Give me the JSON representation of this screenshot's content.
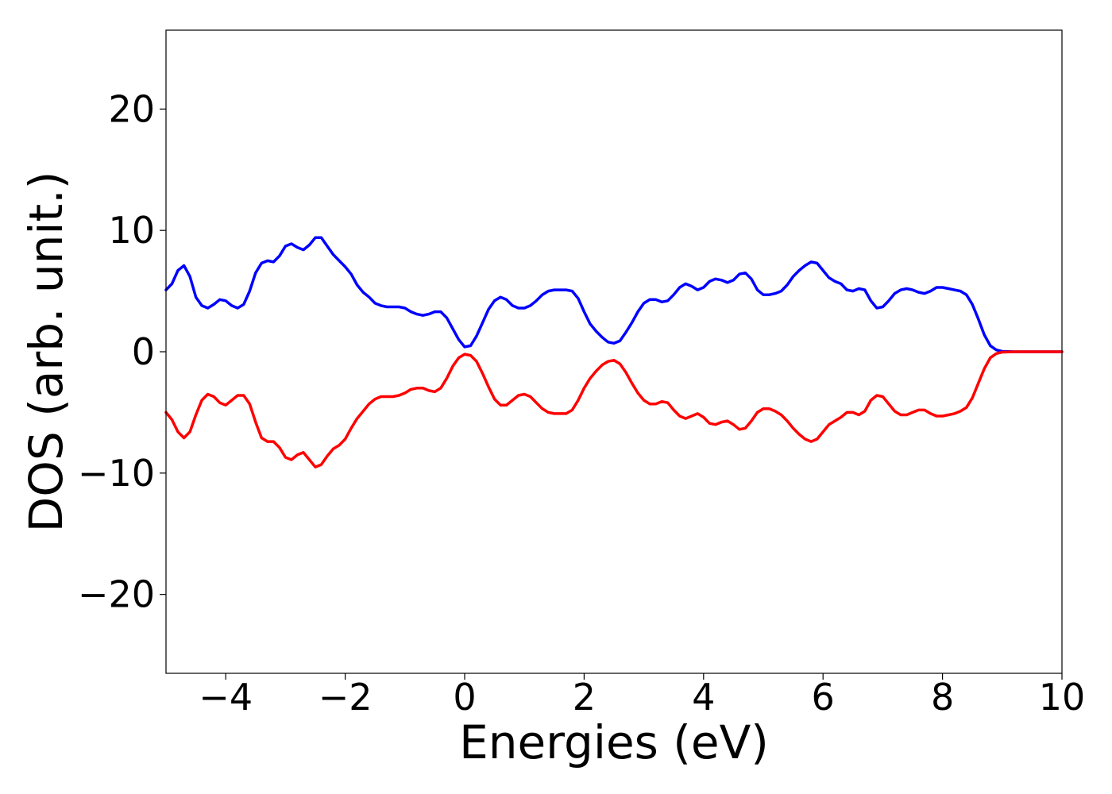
{
  "chart_data": {
    "type": "line",
    "xlabel": "Energies (eV)",
    "ylabel": "DOS (arb. unit.)",
    "xlim": [
      -5,
      10
    ],
    "ylim": [
      -26.5,
      26.5
    ],
    "xticks": [
      -4,
      -2,
      0,
      2,
      4,
      6,
      8,
      10
    ],
    "xtick_labels": [
      "−4",
      "−2",
      "0",
      "2",
      "4",
      "6",
      "8",
      "10"
    ],
    "yticks": [
      -20,
      -10,
      0,
      10,
      20
    ],
    "ytick_labels": [
      "−20",
      "−10",
      "0",
      "10",
      "20"
    ],
    "grid": false,
    "series": [
      {
        "color": "#0000ff",
        "points": [
          [
            -5.0,
            5.1
          ],
          [
            -4.9,
            5.6
          ],
          [
            -4.8,
            6.7
          ],
          [
            -4.7,
            7.1
          ],
          [
            -4.6,
            6.2
          ],
          [
            -4.5,
            4.5
          ],
          [
            -4.4,
            3.8
          ],
          [
            -4.3,
            3.6
          ],
          [
            -4.2,
            3.9
          ],
          [
            -4.1,
            4.3
          ],
          [
            -4.0,
            4.2
          ],
          [
            -3.9,
            3.8
          ],
          [
            -3.8,
            3.6
          ],
          [
            -3.7,
            3.9
          ],
          [
            -3.6,
            5.0
          ],
          [
            -3.5,
            6.5
          ],
          [
            -3.4,
            7.3
          ],
          [
            -3.3,
            7.5
          ],
          [
            -3.2,
            7.4
          ],
          [
            -3.1,
            7.9
          ],
          [
            -3.0,
            8.7
          ],
          [
            -2.9,
            8.9
          ],
          [
            -2.8,
            8.6
          ],
          [
            -2.7,
            8.4
          ],
          [
            -2.6,
            8.8
          ],
          [
            -2.5,
            9.4
          ],
          [
            -2.4,
            9.4
          ],
          [
            -2.3,
            8.7
          ],
          [
            -2.2,
            8.0
          ],
          [
            -2.1,
            7.5
          ],
          [
            -2.0,
            7.0
          ],
          [
            -1.9,
            6.4
          ],
          [
            -1.8,
            5.5
          ],
          [
            -1.7,
            4.9
          ],
          [
            -1.6,
            4.5
          ],
          [
            -1.5,
            4.0
          ],
          [
            -1.4,
            3.8
          ],
          [
            -1.3,
            3.7
          ],
          [
            -1.2,
            3.7
          ],
          [
            -1.1,
            3.7
          ],
          [
            -1.0,
            3.6
          ],
          [
            -0.9,
            3.3
          ],
          [
            -0.8,
            3.1
          ],
          [
            -0.7,
            3.0
          ],
          [
            -0.6,
            3.1
          ],
          [
            -0.5,
            3.3
          ],
          [
            -0.4,
            3.3
          ],
          [
            -0.3,
            2.8
          ],
          [
            -0.2,
            1.9
          ],
          [
            -0.1,
            1.0
          ],
          [
            0.0,
            0.4
          ],
          [
            0.1,
            0.5
          ],
          [
            0.2,
            1.3
          ],
          [
            0.3,
            2.4
          ],
          [
            0.4,
            3.5
          ],
          [
            0.5,
            4.2
          ],
          [
            0.6,
            4.5
          ],
          [
            0.7,
            4.3
          ],
          [
            0.8,
            3.8
          ],
          [
            0.9,
            3.6
          ],
          [
            1.0,
            3.6
          ],
          [
            1.1,
            3.8
          ],
          [
            1.2,
            4.2
          ],
          [
            1.3,
            4.7
          ],
          [
            1.4,
            5.0
          ],
          [
            1.5,
            5.1
          ],
          [
            1.6,
            5.1
          ],
          [
            1.7,
            5.1
          ],
          [
            1.8,
            5.0
          ],
          [
            1.9,
            4.4
          ],
          [
            2.0,
            3.3
          ],
          [
            2.1,
            2.3
          ],
          [
            2.2,
            1.7
          ],
          [
            2.3,
            1.2
          ],
          [
            2.4,
            0.8
          ],
          [
            2.5,
            0.7
          ],
          [
            2.6,
            0.9
          ],
          [
            2.7,
            1.6
          ],
          [
            2.8,
            2.4
          ],
          [
            2.9,
            3.3
          ],
          [
            3.0,
            4.0
          ],
          [
            3.1,
            4.3
          ],
          [
            3.2,
            4.3
          ],
          [
            3.3,
            4.1
          ],
          [
            3.4,
            4.2
          ],
          [
            3.5,
            4.7
          ],
          [
            3.6,
            5.3
          ],
          [
            3.7,
            5.6
          ],
          [
            3.8,
            5.4
          ],
          [
            3.9,
            5.1
          ],
          [
            4.0,
            5.3
          ],
          [
            4.1,
            5.8
          ],
          [
            4.2,
            6.0
          ],
          [
            4.3,
            5.9
          ],
          [
            4.4,
            5.7
          ],
          [
            4.5,
            5.9
          ],
          [
            4.6,
            6.4
          ],
          [
            4.7,
            6.5
          ],
          [
            4.8,
            6.0
          ],
          [
            4.9,
            5.1
          ],
          [
            5.0,
            4.7
          ],
          [
            5.1,
            4.7
          ],
          [
            5.2,
            4.8
          ],
          [
            5.3,
            5.0
          ],
          [
            5.4,
            5.5
          ],
          [
            5.5,
            6.2
          ],
          [
            5.6,
            6.7
          ],
          [
            5.7,
            7.1
          ],
          [
            5.8,
            7.4
          ],
          [
            5.9,
            7.3
          ],
          [
            6.0,
            6.7
          ],
          [
            6.1,
            6.1
          ],
          [
            6.2,
            5.8
          ],
          [
            6.3,
            5.6
          ],
          [
            6.4,
            5.1
          ],
          [
            6.5,
            5.0
          ],
          [
            6.6,
            5.2
          ],
          [
            6.7,
            5.1
          ],
          [
            6.8,
            4.2
          ],
          [
            6.9,
            3.6
          ],
          [
            7.0,
            3.7
          ],
          [
            7.1,
            4.2
          ],
          [
            7.2,
            4.8
          ],
          [
            7.3,
            5.1
          ],
          [
            7.4,
            5.2
          ],
          [
            7.5,
            5.1
          ],
          [
            7.6,
            4.9
          ],
          [
            7.7,
            4.8
          ],
          [
            7.8,
            5.0
          ],
          [
            7.9,
            5.3
          ],
          [
            8.0,
            5.3
          ],
          [
            8.1,
            5.2
          ],
          [
            8.2,
            5.1
          ],
          [
            8.3,
            5.0
          ],
          [
            8.4,
            4.7
          ],
          [
            8.5,
            3.9
          ],
          [
            8.6,
            2.7
          ],
          [
            8.7,
            1.4
          ],
          [
            8.8,
            0.5
          ],
          [
            8.9,
            0.15
          ],
          [
            9.0,
            0.03
          ],
          [
            9.2,
            0.0
          ],
          [
            9.5,
            0.0
          ],
          [
            10.0,
            0.0
          ]
        ]
      },
      {
        "color": "#ff0000",
        "points": [
          [
            -5.0,
            -5.0
          ],
          [
            -4.9,
            -5.6
          ],
          [
            -4.8,
            -6.6
          ],
          [
            -4.7,
            -7.1
          ],
          [
            -4.6,
            -6.6
          ],
          [
            -4.5,
            -5.2
          ],
          [
            -4.4,
            -4.0
          ],
          [
            -4.3,
            -3.5
          ],
          [
            -4.2,
            -3.7
          ],
          [
            -4.1,
            -4.2
          ],
          [
            -4.0,
            -4.4
          ],
          [
            -3.9,
            -4.0
          ],
          [
            -3.8,
            -3.6
          ],
          [
            -3.7,
            -3.6
          ],
          [
            -3.6,
            -4.3
          ],
          [
            -3.5,
            -5.8
          ],
          [
            -3.4,
            -7.1
          ],
          [
            -3.3,
            -7.4
          ],
          [
            -3.2,
            -7.4
          ],
          [
            -3.1,
            -7.9
          ],
          [
            -3.0,
            -8.7
          ],
          [
            -2.9,
            -8.9
          ],
          [
            -2.8,
            -8.5
          ],
          [
            -2.7,
            -8.3
          ],
          [
            -2.6,
            -8.9
          ],
          [
            -2.5,
            -9.5
          ],
          [
            -2.4,
            -9.3
          ],
          [
            -2.3,
            -8.6
          ],
          [
            -2.2,
            -8.0
          ],
          [
            -2.1,
            -7.7
          ],
          [
            -2.0,
            -7.2
          ],
          [
            -1.9,
            -6.3
          ],
          [
            -1.8,
            -5.5
          ],
          [
            -1.7,
            -4.9
          ],
          [
            -1.6,
            -4.3
          ],
          [
            -1.5,
            -3.9
          ],
          [
            -1.4,
            -3.7
          ],
          [
            -1.3,
            -3.7
          ],
          [
            -1.2,
            -3.7
          ],
          [
            -1.1,
            -3.6
          ],
          [
            -1.0,
            -3.4
          ],
          [
            -0.9,
            -3.1
          ],
          [
            -0.8,
            -3.0
          ],
          [
            -0.7,
            -3.0
          ],
          [
            -0.6,
            -3.2
          ],
          [
            -0.5,
            -3.3
          ],
          [
            -0.4,
            -3.0
          ],
          [
            -0.3,
            -2.2
          ],
          [
            -0.2,
            -1.2
          ],
          [
            -0.1,
            -0.5
          ],
          [
            0.0,
            -0.2
          ],
          [
            0.1,
            -0.3
          ],
          [
            0.2,
            -0.8
          ],
          [
            0.3,
            -1.8
          ],
          [
            0.4,
            -2.9
          ],
          [
            0.5,
            -3.9
          ],
          [
            0.6,
            -4.4
          ],
          [
            0.7,
            -4.4
          ],
          [
            0.8,
            -4.0
          ],
          [
            0.9,
            -3.6
          ],
          [
            1.0,
            -3.5
          ],
          [
            1.1,
            -3.7
          ],
          [
            1.2,
            -4.2
          ],
          [
            1.3,
            -4.7
          ],
          [
            1.4,
            -5.0
          ],
          [
            1.5,
            -5.1
          ],
          [
            1.6,
            -5.1
          ],
          [
            1.7,
            -5.1
          ],
          [
            1.8,
            -4.8
          ],
          [
            1.9,
            -4.0
          ],
          [
            2.0,
            -3.0
          ],
          [
            2.1,
            -2.2
          ],
          [
            2.2,
            -1.6
          ],
          [
            2.3,
            -1.1
          ],
          [
            2.4,
            -0.8
          ],
          [
            2.5,
            -0.7
          ],
          [
            2.6,
            -1.0
          ],
          [
            2.7,
            -1.7
          ],
          [
            2.8,
            -2.6
          ],
          [
            2.9,
            -3.4
          ],
          [
            3.0,
            -4.0
          ],
          [
            3.1,
            -4.3
          ],
          [
            3.2,
            -4.3
          ],
          [
            3.3,
            -4.1
          ],
          [
            3.4,
            -4.2
          ],
          [
            3.5,
            -4.8
          ],
          [
            3.6,
            -5.3
          ],
          [
            3.7,
            -5.5
          ],
          [
            3.8,
            -5.3
          ],
          [
            3.9,
            -5.1
          ],
          [
            4.0,
            -5.4
          ],
          [
            4.1,
            -5.9
          ],
          [
            4.2,
            -6.0
          ],
          [
            4.3,
            -5.8
          ],
          [
            4.4,
            -5.7
          ],
          [
            4.5,
            -6.0
          ],
          [
            4.6,
            -6.4
          ],
          [
            4.7,
            -6.3
          ],
          [
            4.8,
            -5.7
          ],
          [
            4.9,
            -5.0
          ],
          [
            5.0,
            -4.7
          ],
          [
            5.1,
            -4.7
          ],
          [
            5.2,
            -4.9
          ],
          [
            5.3,
            -5.2
          ],
          [
            5.4,
            -5.7
          ],
          [
            5.5,
            -6.3
          ],
          [
            5.6,
            -6.8
          ],
          [
            5.7,
            -7.2
          ],
          [
            5.8,
            -7.4
          ],
          [
            5.9,
            -7.2
          ],
          [
            6.0,
            -6.6
          ],
          [
            6.1,
            -6.0
          ],
          [
            6.2,
            -5.7
          ],
          [
            6.3,
            -5.4
          ],
          [
            6.4,
            -5.0
          ],
          [
            6.5,
            -5.0
          ],
          [
            6.6,
            -5.2
          ],
          [
            6.7,
            -4.9
          ],
          [
            6.8,
            -4.0
          ],
          [
            6.9,
            -3.6
          ],
          [
            7.0,
            -3.7
          ],
          [
            7.1,
            -4.3
          ],
          [
            7.2,
            -4.9
          ],
          [
            7.3,
            -5.2
          ],
          [
            7.4,
            -5.2
          ],
          [
            7.5,
            -5.0
          ],
          [
            7.6,
            -4.8
          ],
          [
            7.7,
            -4.8
          ],
          [
            7.8,
            -5.1
          ],
          [
            7.9,
            -5.3
          ],
          [
            8.0,
            -5.3
          ],
          [
            8.1,
            -5.2
          ],
          [
            8.2,
            -5.1
          ],
          [
            8.3,
            -4.9
          ],
          [
            8.4,
            -4.6
          ],
          [
            8.5,
            -3.8
          ],
          [
            8.6,
            -2.6
          ],
          [
            8.7,
            -1.4
          ],
          [
            8.8,
            -0.5
          ],
          [
            8.9,
            -0.15
          ],
          [
            9.0,
            -0.03
          ],
          [
            9.2,
            0.0
          ],
          [
            9.5,
            0.0
          ],
          [
            10.0,
            0.0
          ]
        ]
      }
    ]
  }
}
